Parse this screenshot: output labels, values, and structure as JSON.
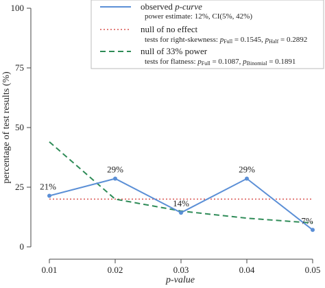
{
  "chart_data": {
    "type": "line",
    "xlabel": "p-value",
    "ylabel": "percentage of test results (%)",
    "x": [
      0.01,
      0.02,
      0.03,
      0.04,
      0.05
    ],
    "xticks": [
      "0.01",
      "0.02",
      "0.03",
      "0.04",
      "0.05"
    ],
    "ylim": [
      0,
      100
    ],
    "yticks": [
      "0",
      "25",
      "50",
      "75",
      "100"
    ],
    "grid": false,
    "legend_position": "top-right",
    "series": [
      {
        "name": "observed p-curve",
        "values": [
          21.4,
          28.6,
          14.3,
          28.6,
          7.1
        ],
        "data_labels": [
          "21%",
          "29%",
          "14%",
          "29%",
          "7%"
        ],
        "color": "#5b8fd6",
        "style": "solid"
      },
      {
        "name": "null of no effect",
        "values": [
          20,
          20,
          20,
          20,
          20
        ],
        "color": "#d9534f",
        "style": "dotted"
      },
      {
        "name": "null of 33% power",
        "values": [
          44,
          20,
          15,
          12,
          10
        ],
        "color": "#2e8b57",
        "style": "dashed"
      }
    ]
  },
  "legend": {
    "observed": {
      "name_plain": "observed ",
      "name_italic": "p-curve",
      "sub": "power estimate: 12%, CI(5%, 42%)"
    },
    "no_effect": {
      "name": "null of no effect",
      "sub_prefix": "tests for right-skewness: ",
      "p1_sym": "p",
      "p1_sub": "Full",
      "p1_val": " = 0.1545, ",
      "p2_sym": "p",
      "p2_sub": "Half",
      "p2_val": " = 0.2892"
    },
    "power33": {
      "name": "null of 33% power",
      "sub_prefix": "tests for flatness: ",
      "p1_sym": "p",
      "p1_sub": "Full",
      "p1_val": " = 0.1087, ",
      "p2_sym": "p",
      "p2_sub": "Binomial",
      "p2_val": " = 0.1891"
    }
  }
}
